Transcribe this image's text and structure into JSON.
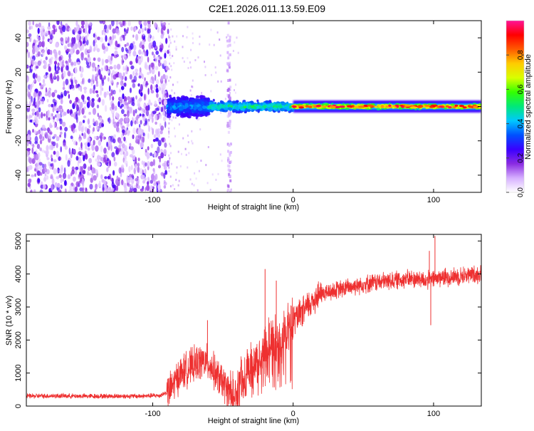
{
  "title": "C2E1.2026.011.13.59.E09",
  "chart_data": [
    {
      "id": "spectrogram",
      "type": "heatmap",
      "title": "C2E1.2026.011.13.59.E09",
      "xlabel": "Height of straight line (km)",
      "ylabel": "Frequency (Hz)",
      "xlim": [
        -190,
        134
      ],
      "ylim": [
        -50,
        50
      ],
      "xticks": [
        -100,
        0,
        100
      ],
      "yticks": [
        -40,
        -20,
        0,
        20,
        40
      ],
      "colorbar": {
        "label": "Normalized spectral amplitude",
        "range": [
          0,
          1
        ],
        "ticks": [
          0,
          0.2,
          0.4,
          0.6,
          0.8
        ],
        "colors": [
          "#ffffff",
          "#d6b0ff",
          "#8a2be2",
          "#3a00ff",
          "#0050ff",
          "#00c8ff",
          "#00e87a",
          "#33ff00",
          "#d8ff00",
          "#ffcc00",
          "#ff5a00",
          "#ff0000",
          "#ff1496"
        ]
      },
      "regions": [
        {
          "name": "noise",
          "x": [
            -190,
            -89
          ],
          "freq_range": [
            -50,
            50
          ],
          "amplitude": 0.15
        },
        {
          "name": "onset",
          "x": [
            -89,
            -60
          ],
          "freq_center": 0,
          "spread_hz": 7,
          "amplitude": 0.3
        },
        {
          "name": "transition",
          "x": [
            -60,
            0
          ],
          "freq_center": 0,
          "spread_hz": 4,
          "amplitude": 0.4
        },
        {
          "name": "tone",
          "x": [
            0,
            134
          ],
          "freq_center": 0,
          "spread_hz": 2,
          "amplitude": 0.7
        }
      ],
      "artifact_column_x": -46
    },
    {
      "id": "snr",
      "type": "line",
      "xlabel": "Height of straight line (km)",
      "ylabel": "SNR (10 * v/v)",
      "xlim": [
        -190,
        134
      ],
      "ylim": [
        0,
        5200
      ],
      "xticks": [
        -100,
        0,
        100
      ],
      "yticks": [
        0,
        1000,
        2000,
        3000,
        4000,
        5000
      ],
      "color": "#ee3030",
      "series": [
        {
          "name": "SNR",
          "x": [
            -190,
            -170,
            -150,
            -130,
            -110,
            -95,
            -88,
            -82,
            -75,
            -70,
            -65,
            -60,
            -55,
            -50,
            -45,
            -42,
            -38,
            -35,
            -30,
            -25,
            -20,
            -15,
            -10,
            -5,
            0,
            5,
            10,
            15,
            20,
            25,
            30,
            40,
            50,
            60,
            70,
            80,
            90,
            95,
            100,
            105,
            110,
            120,
            134
          ],
          "y": [
            300,
            310,
            300,
            300,
            300,
            320,
            450,
            900,
            1150,
            1250,
            1350,
            1300,
            950,
            700,
            400,
            300,
            700,
            1000,
            1200,
            1450,
            1800,
            2100,
            2000,
            2300,
            2600,
            2750,
            3000,
            3250,
            3400,
            3450,
            3500,
            3600,
            3700,
            3750,
            3800,
            3850,
            3850,
            3800,
            3850,
            3900,
            3900,
            3950,
            4000
          ]
        }
      ],
      "spikes": [
        {
          "x": -61,
          "y": 2600
        },
        {
          "x": -20,
          "y": 4150
        },
        {
          "x": -12,
          "y": 3800
        },
        {
          "x": 97,
          "y": 4700
        },
        {
          "x": 101,
          "y": 5150
        },
        {
          "x": 98,
          "y": 2450
        }
      ]
    }
  ]
}
